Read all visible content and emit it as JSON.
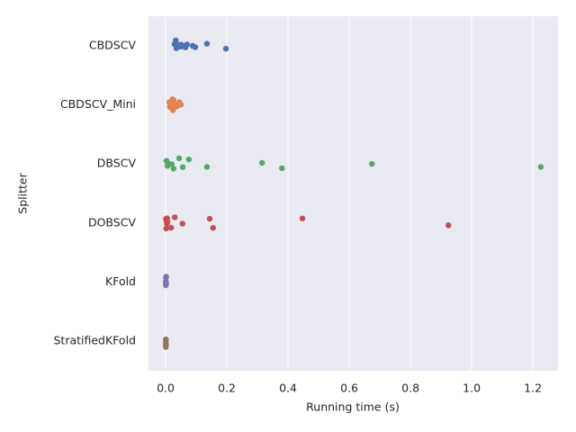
{
  "chart_data": {
    "type": "strip",
    "x_label": "Running time (s)",
    "y_label": "Splitter",
    "categories": [
      "CBDSCV",
      "CBDSCV_Mini",
      "DBSCV",
      "DOBSCV",
      "KFold",
      "StratifiedKFold"
    ],
    "colors": [
      "#4c72b0",
      "#dd8452",
      "#55a868",
      "#c44e52",
      "#8172b3",
      "#937860"
    ],
    "values": [
      [
        0.029,
        0.033,
        0.035,
        0.041,
        0.047,
        0.05,
        0.056,
        0.06,
        0.065,
        0.07,
        0.088,
        0.097,
        0.135,
        0.197
      ],
      [
        0.012,
        0.014,
        0.016,
        0.018,
        0.02,
        0.022,
        0.024,
        0.026,
        0.03,
        0.034,
        0.038,
        0.045,
        0.05
      ],
      [
        0.003,
        0.006,
        0.008,
        0.02,
        0.026,
        0.044,
        0.056,
        0.076,
        0.135,
        0.315,
        0.38,
        0.674,
        1.226
      ],
      [
        0.001,
        0.002,
        0.003,
        0.004,
        0.005,
        0.006,
        0.018,
        0.03,
        0.055,
        0.144,
        0.155,
        0.447,
        0.924
      ],
      [
        0.0005,
        0.0007,
        0.0008,
        0.001,
        0.001,
        0.0012,
        0.0015,
        0.002
      ],
      [
        0.0004,
        0.0005,
        0.0006,
        0.0007,
        0.0008,
        0.0009,
        0.001,
        0.0011
      ]
    ],
    "xlim": [
      -0.056,
      1.282
    ],
    "xticks": [
      {
        "value": 0,
        "label": "0.0"
      },
      {
        "value": 0.2,
        "label": "0.2"
      },
      {
        "value": 0.4,
        "label": "0.4"
      },
      {
        "value": 0.6,
        "label": "0.6"
      },
      {
        "value": 0.8,
        "label": "0.8"
      },
      {
        "value": 1,
        "label": "1.0"
      },
      {
        "value": 1.2,
        "label": "1.2"
      }
    ],
    "grid": true
  }
}
